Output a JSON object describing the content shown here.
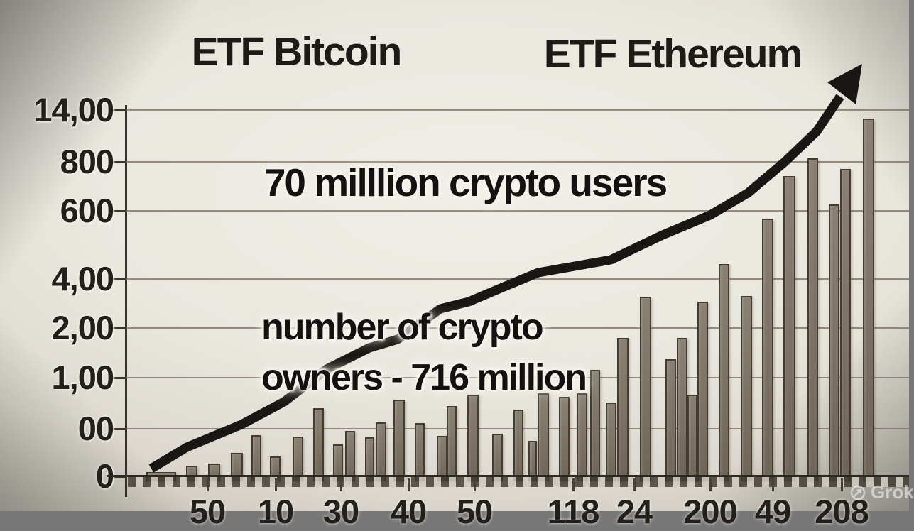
{
  "titles": {
    "left": "ETF Bitcoin",
    "right": "ETF Ethereum"
  },
  "annotations": {
    "users": "70 milllion crypto users",
    "owners_line1": "number of crypto",
    "owners_line2": "owners - 716 million"
  },
  "watermark": {
    "label": "Grok"
  },
  "colors": {
    "background": "#eae7df",
    "ink": "#1b1915",
    "bar_fill": "#7b7265",
    "bar_edge": "#423c31",
    "grid": "#786c5a",
    "trend_line": "#191713"
  },
  "chart_data": {
    "type": "bar",
    "title_left": "ETF Bitcoin",
    "title_right": "ETF Ethereum",
    "grid": true,
    "y_ticks": [
      {
        "label": "14,00",
        "y": 155
      },
      {
        "label": "800",
        "y": 228
      },
      {
        "label": "600",
        "y": 297
      },
      {
        "label": "4,00",
        "y": 393
      },
      {
        "label": "2,00",
        "y": 462
      },
      {
        "label": "1,00",
        "y": 532
      },
      {
        "label": "00",
        "y": 604
      },
      {
        "label": "0",
        "y": 671
      }
    ],
    "x_ticks": [
      {
        "label": "50",
        "x": 292
      },
      {
        "label": "10",
        "x": 388
      },
      {
        "label": "30",
        "x": 480
      },
      {
        "label": "40",
        "x": 575
      },
      {
        "label": "50",
        "x": 668
      },
      {
        "label": "118",
        "x": 807
      },
      {
        "label": "24",
        "x": 893
      },
      {
        "label": "200",
        "x": 1000
      },
      {
        "label": "49",
        "x": 1088
      },
      {
        "label": "208",
        "x": 1185
      }
    ],
    "axis": {
      "baseline_y": 671,
      "top_y": 155,
      "left_x": 178
    },
    "bars_pct_of_axis_height": [
      {
        "x": 206,
        "w": 42,
        "pct": 1.2
      },
      {
        "x": 262,
        "w": 16,
        "pct": 2.9
      },
      {
        "x": 293,
        "w": 17,
        "pct": 3.4
      },
      {
        "x": 325,
        "w": 17,
        "pct": 6.4
      },
      {
        "x": 354,
        "w": 14,
        "pct": 11.2
      },
      {
        "x": 380,
        "w": 15,
        "pct": 5.4
      },
      {
        "x": 412,
        "w": 15,
        "pct": 10.8
      },
      {
        "x": 441,
        "w": 15,
        "pct": 18.6
      },
      {
        "x": 469,
        "w": 14,
        "pct": 8.7
      },
      {
        "x": 486,
        "w": 14,
        "pct": 12.4
      },
      {
        "x": 514,
        "w": 13,
        "pct": 10.6
      },
      {
        "x": 529,
        "w": 15,
        "pct": 14.7
      },
      {
        "x": 554,
        "w": 16,
        "pct": 20.9
      },
      {
        "x": 584,
        "w": 14,
        "pct": 14.5
      },
      {
        "x": 615,
        "w": 15,
        "pct": 11.0
      },
      {
        "x": 629,
        "w": 14,
        "pct": 19.1
      },
      {
        "x": 658,
        "w": 16,
        "pct": 22.2
      },
      {
        "x": 693,
        "w": 15,
        "pct": 11.6
      },
      {
        "x": 723,
        "w": 14,
        "pct": 18.2
      },
      {
        "x": 744,
        "w": 12,
        "pct": 9.7
      },
      {
        "x": 757,
        "w": 16,
        "pct": 22.6
      },
      {
        "x": 787,
        "w": 15,
        "pct": 21.7
      },
      {
        "x": 812,
        "w": 15,
        "pct": 22.6
      },
      {
        "x": 831,
        "w": 14,
        "pct": 29.0
      },
      {
        "x": 853,
        "w": 15,
        "pct": 20.1
      },
      {
        "x": 869,
        "w": 16,
        "pct": 37.7
      },
      {
        "x": 901,
        "w": 16,
        "pct": 49.1
      },
      {
        "x": 937,
        "w": 15,
        "pct": 31.9
      },
      {
        "x": 953,
        "w": 15,
        "pct": 37.7
      },
      {
        "x": 968,
        "w": 14,
        "pct": 22.2
      },
      {
        "x": 982,
        "w": 15,
        "pct": 47.6
      },
      {
        "x": 1012,
        "w": 15,
        "pct": 58.0
      },
      {
        "x": 1043,
        "w": 16,
        "pct": 49.3
      },
      {
        "x": 1073,
        "w": 16,
        "pct": 70.4
      },
      {
        "x": 1103,
        "w": 17,
        "pct": 82.0
      },
      {
        "x": 1137,
        "w": 15,
        "pct": 86.9
      },
      {
        "x": 1167,
        "w": 15,
        "pct": 74.3
      },
      {
        "x": 1183,
        "w": 15,
        "pct": 84.0
      },
      {
        "x": 1215,
        "w": 16,
        "pct": 97.7
      }
    ],
    "trend_line": {
      "points": [
        [
          213,
          660
        ],
        [
          263,
          630
        ],
        [
          340,
          598
        ],
        [
          400,
          566
        ],
        [
          460,
          520
        ],
        [
          520,
          490
        ],
        [
          560,
          478
        ],
        [
          620,
          435
        ],
        [
          660,
          425
        ],
        [
          712,
          403
        ],
        [
          758,
          384
        ],
        [
          860,
          366
        ],
        [
          933,
          331
        ],
        [
          1000,
          303
        ],
        [
          1053,
          272
        ],
        [
          1105,
          228
        ],
        [
          1150,
          185
        ],
        [
          1183,
          136
        ]
      ],
      "arrowhead": [
        [
          1214,
          90
        ],
        [
          1205,
          147
        ],
        [
          1165,
          116
        ]
      ],
      "stroke_width": 13
    }
  }
}
